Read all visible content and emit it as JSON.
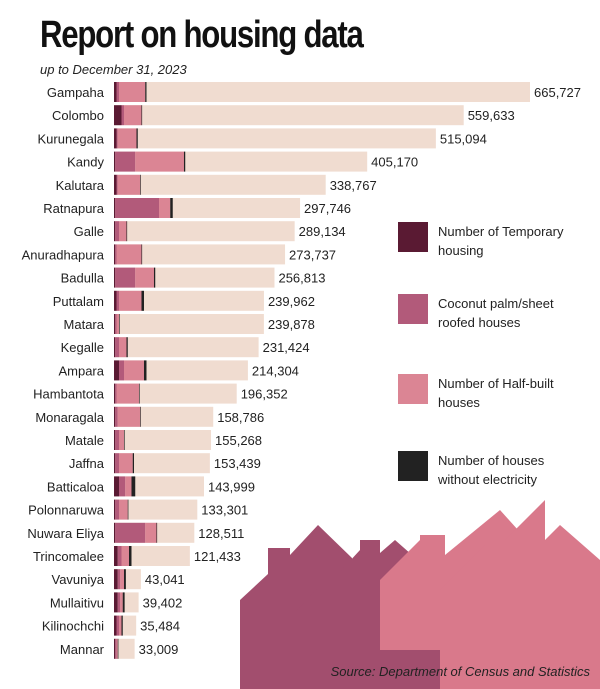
{
  "title": "Report on housing data",
  "subtitle": "up to December 31, 2023",
  "source": "Source: Department of Census and Statistics",
  "colors": {
    "total": "#f0dcd0",
    "temporary": "#5a1a33",
    "coconut": "#b25a7a",
    "halfbuilt": "#db8594",
    "noelectricity": "#222222",
    "houses_dark": "#a24e6e",
    "houses_light": "#d9798b"
  },
  "legend": [
    {
      "key": "temporary",
      "label": "Number of Temporary housing"
    },
    {
      "key": "coconut",
      "label": "Coconut palm/sheet roofed houses"
    },
    {
      "key": "halfbuilt",
      "label": "Number of Half-built houses"
    },
    {
      "key": "noelectricity",
      "label": "Number of houses without electricity"
    }
  ],
  "chart_data": {
    "type": "bar",
    "orientation": "horizontal",
    "title": "Report on housing data",
    "subtitle": "up to December 31, 2023",
    "categories": [
      "Gampaha",
      "Colombo",
      "Kurunegala",
      "Kandy",
      "Kalutara",
      "Ratnapura",
      "Galle",
      "Anuradhapura",
      "Badulla",
      "Puttalam",
      "Matara",
      "Kegalle",
      "Ampara",
      "Hambantota",
      "Monaragala",
      "Matale",
      "Jaffna",
      "Batticaloa",
      "Polonnaruwa",
      "Nuwara Eliya",
      "Trincomalee",
      "Vavuniya",
      "Mullaitivu",
      "Kilinochchi",
      "Mannar"
    ],
    "value_labels": [
      "665,727",
      "559,633",
      "515,094",
      "405,170",
      "338,767",
      "297,746",
      "289,134",
      "273,737",
      "256,813",
      "239,962",
      "239,878",
      "231,424",
      "214,304",
      "196,352",
      "158,786",
      "155,268",
      "153,439",
      "143,999",
      "133,301",
      "128,511",
      "121,433",
      "43,041",
      "39,402",
      "35,484",
      "33,009"
    ],
    "series": [
      {
        "key": "total",
        "values": [
          665727,
          559633,
          515094,
          405170,
          338767,
          297746,
          289134,
          273737,
          256813,
          239962,
          239878,
          231424,
          214304,
          196352,
          158786,
          155268,
          153439,
          143999,
          133301,
          128511,
          121433,
          43041,
          39402,
          35484,
          33009
        ]
      },
      {
        "key": "temporary",
        "name": "Number of Temporary housing",
        "values": [
          4000,
          12000,
          4000,
          2000,
          4000,
          2000,
          2000,
          2000,
          2000,
          4000,
          2000,
          2000,
          8000,
          2000,
          2000,
          2000,
          2000,
          8000,
          2000,
          2000,
          6000,
          6000,
          6000,
          4000,
          2000
        ]
      },
      {
        "key": "coconut",
        "name": "Coconut palm/sheet roofed houses",
        "values": [
          4000,
          4000,
          2000,
          32000,
          2000,
          70000,
          6000,
          2000,
          32000,
          4000,
          2000,
          6000,
          8000,
          2000,
          4000,
          6000,
          6000,
          10000,
          6000,
          48000,
          6000,
          4000,
          4000,
          4000,
          2000
        ]
      },
      {
        "key": "halfbuilt",
        "name": "Number of Half-built houses",
        "values": [
          42000,
          28000,
          30000,
          78000,
          36000,
          18000,
          12000,
          40000,
          30000,
          36000,
          4000,
          12000,
          32000,
          36000,
          36000,
          8000,
          22000,
          10000,
          14000,
          18000,
          12000,
          6000,
          4000,
          4000,
          2000
        ]
      },
      {
        "key": "noelectricity",
        "name": "Number of houses without electricity",
        "values": [
          2000,
          1000,
          2000,
          2000,
          1000,
          4000,
          1000,
          1000,
          2000,
          4000,
          1000,
          2000,
          4000,
          1000,
          1000,
          1000,
          2000,
          6000,
          1000,
          1000,
          4000,
          3000,
          3000,
          2000,
          1000
        ]
      }
    ]
  }
}
